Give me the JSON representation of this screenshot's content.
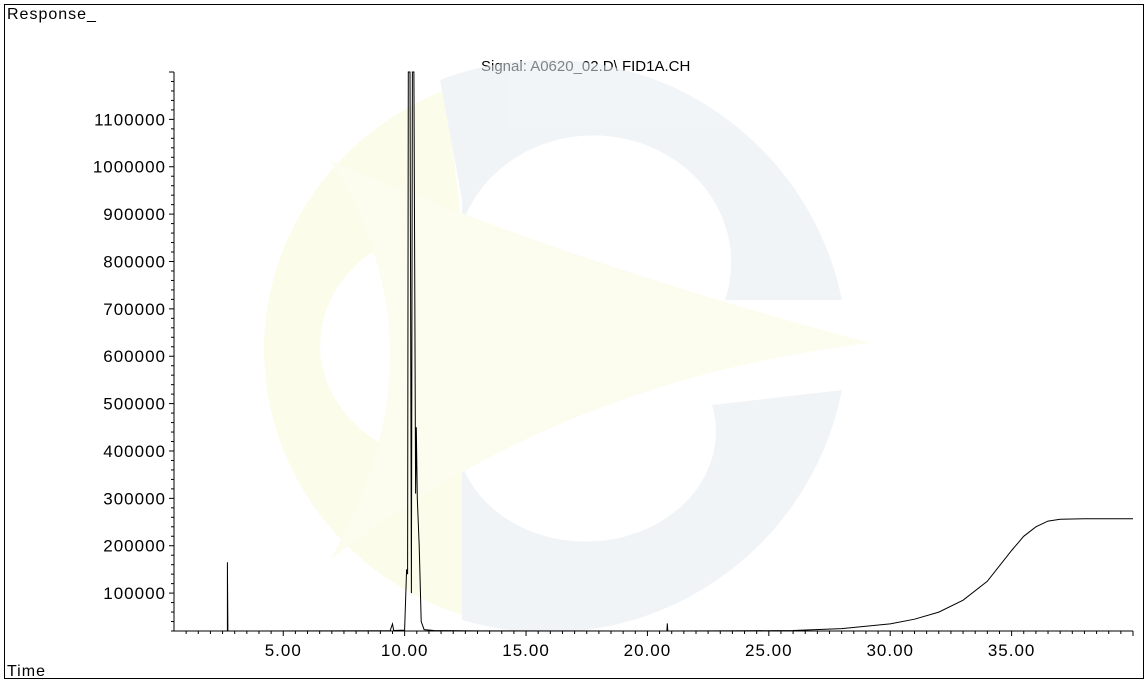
{
  "chart_data": {
    "type": "line",
    "title": "Signal: A0620_02.D\\ FID1A.CH",
    "ylabel": "Response_",
    "xlabel": "Time",
    "xlim": [
      0.5,
      40.0
    ],
    "ylim": [
      20000,
      1200000
    ],
    "x_ticks": [
      "5.00",
      "10.00",
      "15.00",
      "20.00",
      "25.00",
      "30.00",
      "35.00"
    ],
    "y_ticks": [
      "100000",
      "200000",
      "300000",
      "400000",
      "500000",
      "600000",
      "700000",
      "800000",
      "900000",
      "1000000",
      "1100000"
    ],
    "series": [
      {
        "points": [
          [
            0.5,
            20000
          ],
          [
            2.7,
            20000
          ],
          [
            2.7,
            165000
          ],
          [
            2.72,
            20000
          ],
          [
            9.4,
            20500
          ],
          [
            9.5,
            35000
          ],
          [
            9.55,
            21000
          ],
          [
            10.0,
            22000
          ],
          [
            10.08,
            150000
          ],
          [
            10.12,
            140000
          ],
          [
            10.15,
            1200000
          ],
          [
            10.22,
            1200000
          ],
          [
            10.28,
            100000
          ],
          [
            10.32,
            1200000
          ],
          [
            10.38,
            1200000
          ],
          [
            10.45,
            310000
          ],
          [
            10.48,
            450000
          ],
          [
            10.52,
            300000
          ],
          [
            10.6,
            200000
          ],
          [
            10.68,
            40000
          ],
          [
            10.8,
            23000
          ],
          [
            11.2,
            21000
          ],
          [
            13.0,
            20300
          ],
          [
            20.0,
            20000
          ],
          [
            20.8,
            20000
          ],
          [
            20.82,
            36000
          ],
          [
            20.84,
            20000
          ],
          [
            24.0,
            20400
          ],
          [
            26.0,
            21000
          ],
          [
            28.0,
            25000
          ],
          [
            30.0,
            35000
          ],
          [
            31.0,
            45000
          ],
          [
            32.0,
            60000
          ],
          [
            33.0,
            85000
          ],
          [
            34.0,
            125000
          ],
          [
            35.0,
            190000
          ],
          [
            35.5,
            220000
          ],
          [
            36.0,
            240000
          ],
          [
            36.5,
            252000
          ],
          [
            37.0,
            256000
          ],
          [
            38.0,
            257000
          ],
          [
            40.0,
            257000
          ]
        ]
      }
    ]
  }
}
